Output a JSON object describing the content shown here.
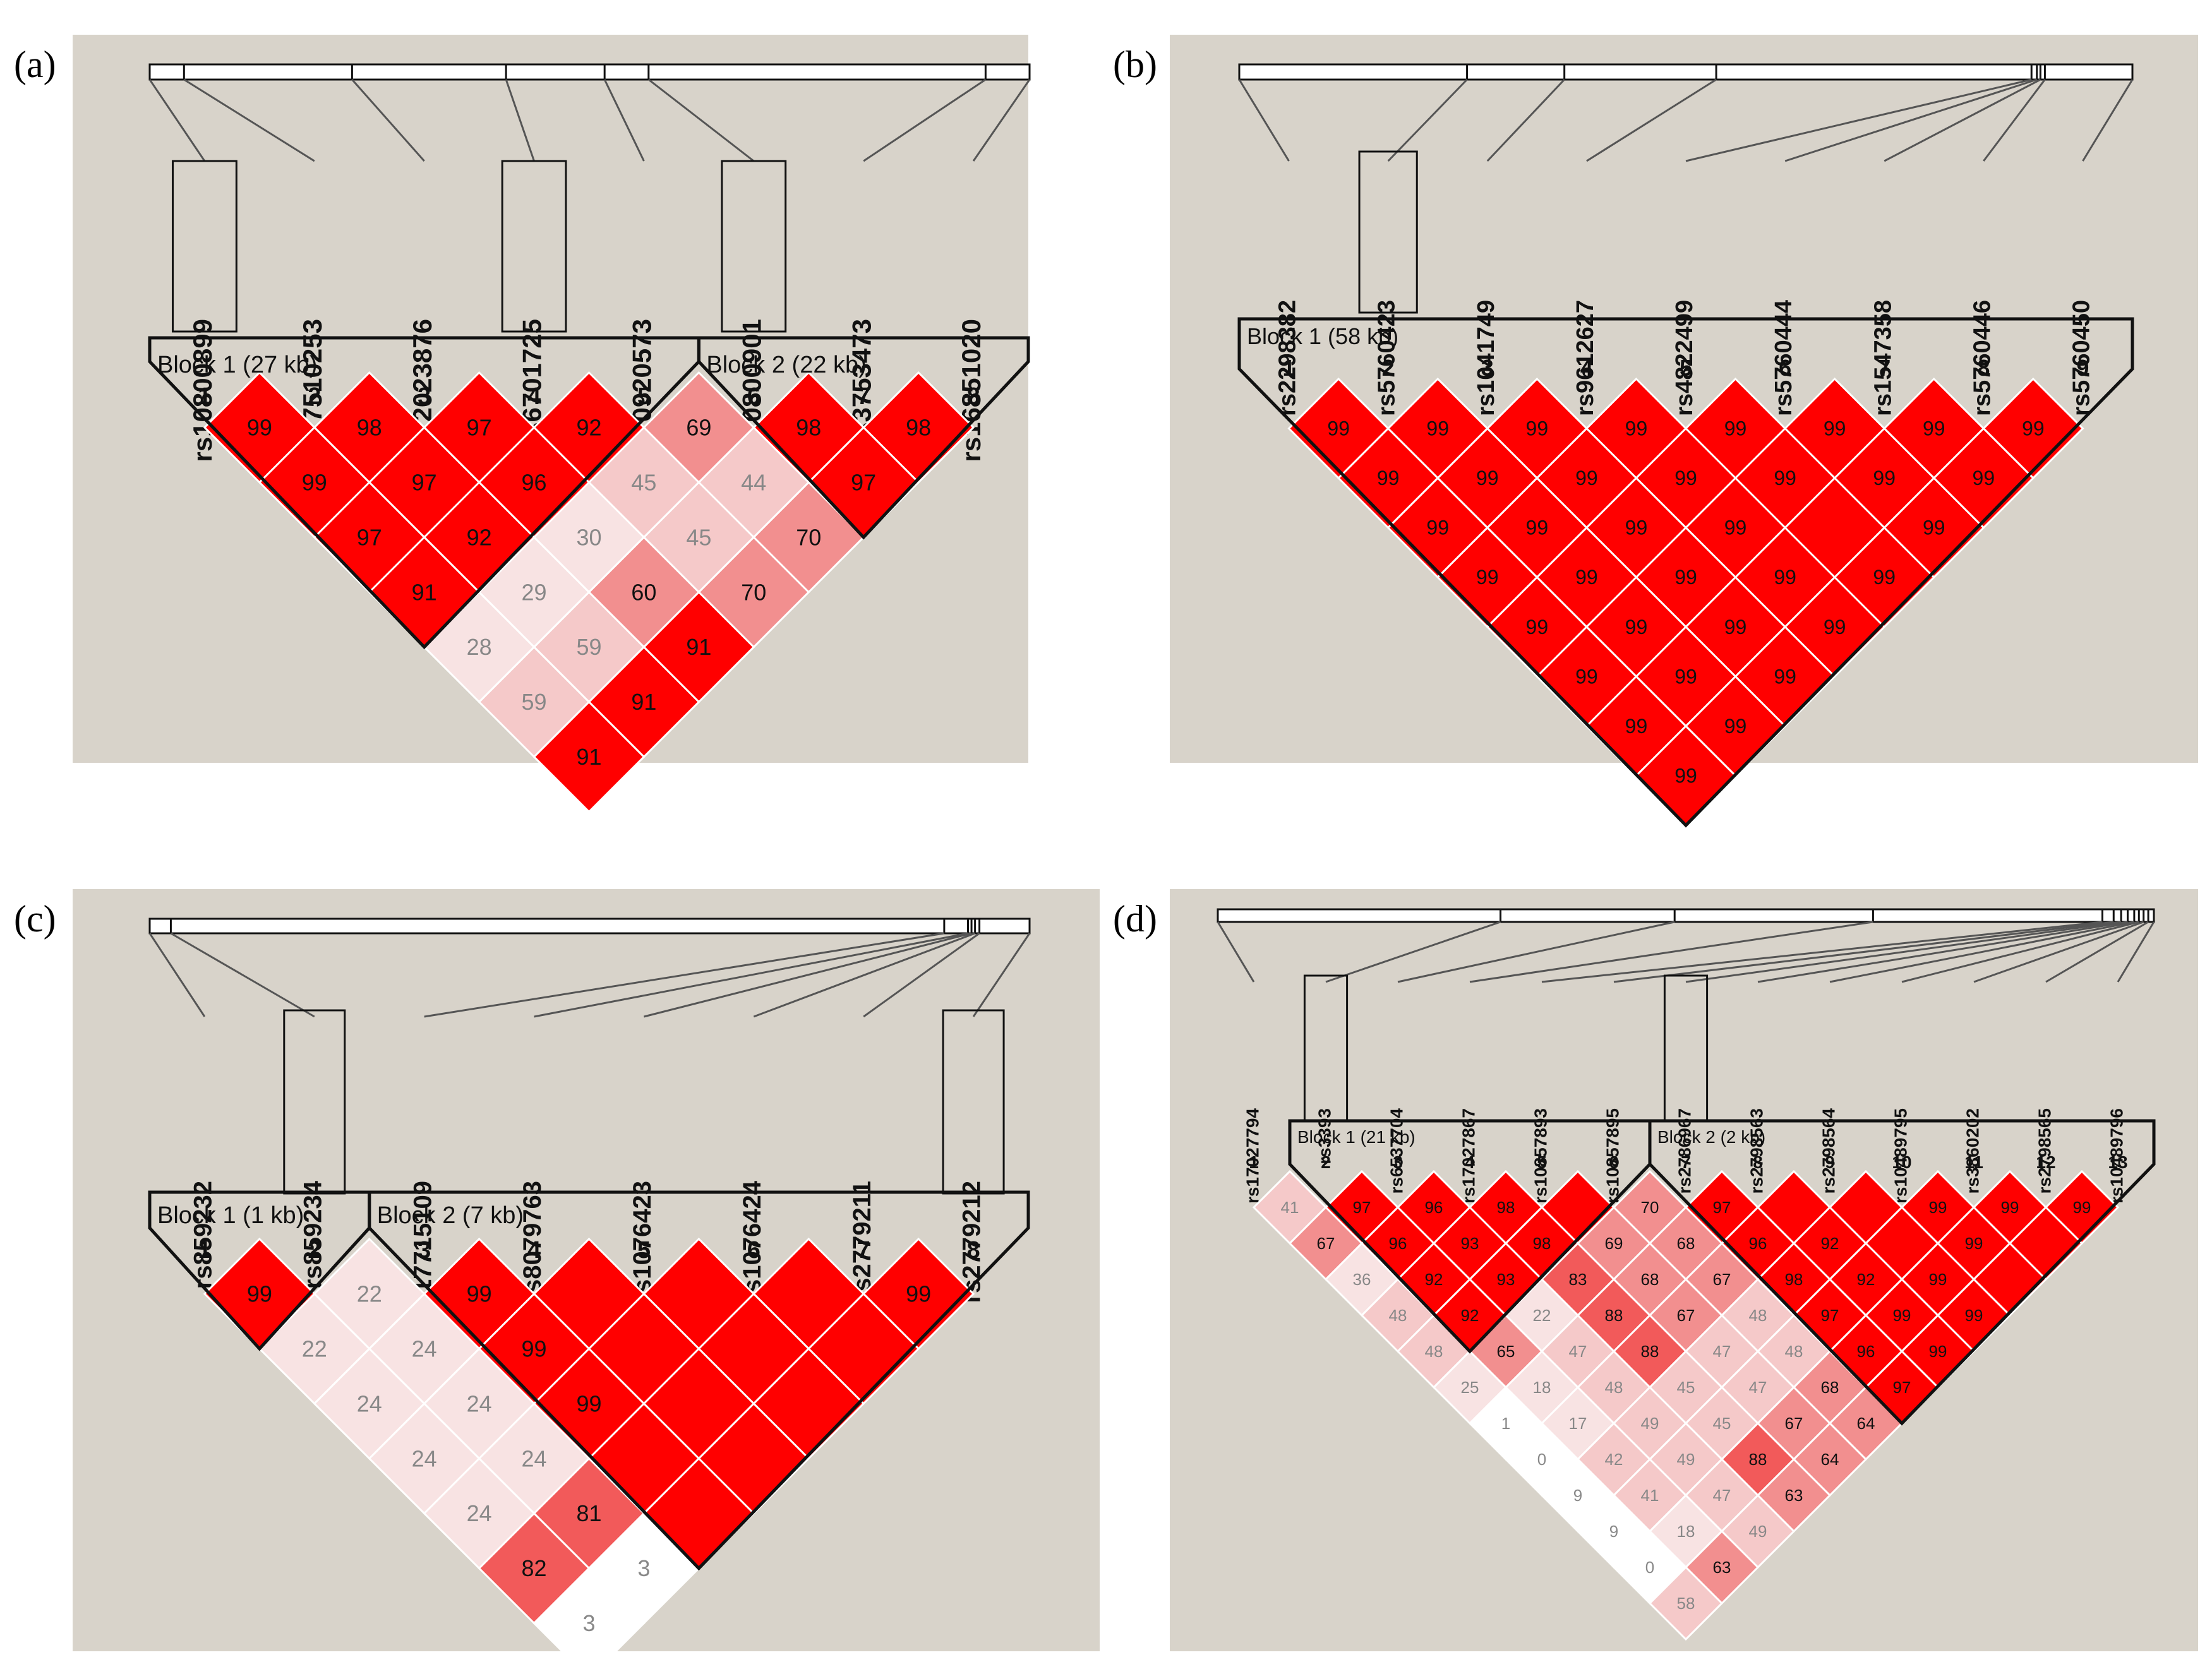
{
  "figure": "Linkage disequilibrium plots",
  "colors": {
    "panel_bg": "#d8d3ca",
    "strong_ld": "#ff0000",
    "mid_high": "#f25a5a",
    "mid": "#f28f8f",
    "low": "#f5c9c9",
    "very_low": "#f8e3e3",
    "none": "#ffffff",
    "outline": "#111111"
  },
  "panels": [
    {
      "letter": "(a)",
      "snps": [
        "rs10800899",
        "rs17510253",
        "rs12023876",
        "rs6701725",
        "rs10920573",
        "rs10800901",
        "rs3753473",
        "rs16851020"
      ],
      "boxed": [
        0,
        3,
        5
      ],
      "positions": [
        0,
        0.039,
        0.23,
        0.405,
        0.517,
        0.567,
        0.95,
        1
      ],
      "blocks": [
        {
          "label": "Block 1 (27 kb)",
          "start": 1,
          "end": 5
        },
        {
          "label": "Block 2 (22 kb)",
          "start": 6,
          "end": 8
        }
      ],
      "ld": [
        {
          "i": 1,
          "j": 2,
          "v": 99
        },
        {
          "i": 2,
          "j": 3,
          "v": 98
        },
        {
          "i": 3,
          "j": 4,
          "v": 97
        },
        {
          "i": 4,
          "j": 5,
          "v": 92
        },
        {
          "i": 5,
          "j": 6,
          "v": 69
        },
        {
          "i": 6,
          "j": 7,
          "v": 98
        },
        {
          "i": 7,
          "j": 8,
          "v": 98
        },
        {
          "i": 1,
          "j": 3,
          "v": 99
        },
        {
          "i": 2,
          "j": 4,
          "v": 97
        },
        {
          "i": 3,
          "j": 5,
          "v": 96
        },
        {
          "i": 4,
          "j": 6,
          "v": 45
        },
        {
          "i": 5,
          "j": 7,
          "v": 44
        },
        {
          "i": 6,
          "j": 8,
          "v": 97
        },
        {
          "i": 1,
          "j": 4,
          "v": 97
        },
        {
          "i": 2,
          "j": 5,
          "v": 92
        },
        {
          "i": 3,
          "j": 6,
          "v": 30
        },
        {
          "i": 4,
          "j": 7,
          "v": 45
        },
        {
          "i": 5,
          "j": 8,
          "v": 70
        },
        {
          "i": 1,
          "j": 5,
          "v": 91
        },
        {
          "i": 2,
          "j": 6,
          "v": 29
        },
        {
          "i": 3,
          "j": 7,
          "v": 60
        },
        {
          "i": 4,
          "j": 8,
          "v": 70
        },
        {
          "i": 1,
          "j": 6,
          "v": 28
        },
        {
          "i": 2,
          "j": 7,
          "v": 59
        },
        {
          "i": 3,
          "j": 8,
          "v": 91
        },
        {
          "i": 1,
          "j": 7,
          "v": 59
        },
        {
          "i": 2,
          "j": 8,
          "v": 91
        },
        {
          "i": 1,
          "j": 8,
          "v": 91
        }
      ]
    },
    {
      "letter": "(b)",
      "snps": [
        "rs2298382",
        "rs5760423",
        "rs1041749",
        "rs9612627",
        "rs4822499",
        "rs5760444",
        "rs1547358",
        "rs5760446",
        "rs5760450"
      ],
      "boxed": [
        1
      ],
      "positions": [
        0,
        0.255,
        0.364,
        0.534,
        0.887,
        0.893,
        0.897,
        0.902,
        1
      ],
      "blocks": [
        {
          "label": "Block 1 (58 kb)",
          "start": 1,
          "end": 9
        }
      ],
      "ld": [
        {
          "i": 1,
          "j": 2,
          "v": 99
        },
        {
          "i": 2,
          "j": 3,
          "v": 99
        },
        {
          "i": 3,
          "j": 4,
          "v": 99
        },
        {
          "i": 4,
          "j": 5,
          "v": 99
        },
        {
          "i": 5,
          "j": 6,
          "v": 99
        },
        {
          "i": 6,
          "j": 7,
          "v": 99
        },
        {
          "i": 7,
          "j": 8,
          "v": 99
        },
        {
          "i": 8,
          "j": 9,
          "v": 99
        },
        {
          "i": 1,
          "j": 3,
          "v": 99
        },
        {
          "i": 2,
          "j": 4,
          "v": 99
        },
        {
          "i": 3,
          "j": 5,
          "v": 99
        },
        {
          "i": 4,
          "j": 6,
          "v": 99
        },
        {
          "i": 5,
          "j": 7,
          "v": 99
        },
        {
          "i": 6,
          "j": 8,
          "v": 99
        },
        {
          "i": 7,
          "j": 9,
          "v": 99
        },
        {
          "i": 1,
          "j": 4,
          "v": 99
        },
        {
          "i": 2,
          "j": 5,
          "v": 99
        },
        {
          "i": 3,
          "j": 6,
          "v": 99
        },
        {
          "i": 4,
          "j": 7,
          "v": 99
        },
        {
          "i": 5,
          "j": 8,
          "v": null
        },
        {
          "i": 6,
          "j": 9,
          "v": 99
        },
        {
          "i": 1,
          "j": 5,
          "v": 99
        },
        {
          "i": 2,
          "j": 6,
          "v": 99
        },
        {
          "i": 3,
          "j": 7,
          "v": 99
        },
        {
          "i": 4,
          "j": 8,
          "v": 99
        },
        {
          "i": 5,
          "j": 9,
          "v": 99
        },
        {
          "i": 1,
          "j": 6,
          "v": 99
        },
        {
          "i": 2,
          "j": 7,
          "v": 99
        },
        {
          "i": 3,
          "j": 8,
          "v": 99
        },
        {
          "i": 4,
          "j": 9,
          "v": 99
        },
        {
          "i": 1,
          "j": 7,
          "v": 99
        },
        {
          "i": 2,
          "j": 8,
          "v": 99
        },
        {
          "i": 3,
          "j": 9,
          "v": 99
        },
        {
          "i": 1,
          "j": 8,
          "v": 99
        },
        {
          "i": 2,
          "j": 9,
          "v": 99
        },
        {
          "i": 1,
          "j": 9,
          "v": 99
        }
      ]
    },
    {
      "letter": "(c)",
      "snps": [
        "rs859232",
        "rs859234",
        "rs17715109",
        "rs8079763",
        "rs1076423",
        "rs1076424",
        "rs2779211",
        "rs2779212"
      ],
      "boxed": [
        1,
        7
      ],
      "positions": [
        0,
        0.024,
        0.903,
        0.93,
        0.934,
        0.938,
        0.943,
        1
      ],
      "blocks": [
        {
          "label": "Block 1 (1 kb)",
          "start": 1,
          "end": 2
        },
        {
          "label": "Block 2 (7 kb)",
          "start": 3,
          "end": 8
        }
      ],
      "ld": [
        {
          "i": 1,
          "j": 2,
          "v": 99
        },
        {
          "i": 2,
          "j": 3,
          "v": 22
        },
        {
          "i": 3,
          "j": 4,
          "v": 99
        },
        {
          "i": 4,
          "j": 5,
          "v": null
        },
        {
          "i": 5,
          "j": 6,
          "v": null
        },
        {
          "i": 6,
          "j": 7,
          "v": null
        },
        {
          "i": 7,
          "j": 8,
          "v": 99
        },
        {
          "i": 1,
          "j": 3,
          "v": 22
        },
        {
          "i": 2,
          "j": 4,
          "v": 24
        },
        {
          "i": 3,
          "j": 5,
          "v": 99
        },
        {
          "i": 4,
          "j": 6,
          "v": null
        },
        {
          "i": 5,
          "j": 7,
          "v": null
        },
        {
          "i": 6,
          "j": 8,
          "v": null
        },
        {
          "i": 1,
          "j": 4,
          "v": 24
        },
        {
          "i": 2,
          "j": 5,
          "v": 24
        },
        {
          "i": 3,
          "j": 6,
          "v": 99
        },
        {
          "i": 4,
          "j": 7,
          "v": null
        },
        {
          "i": 5,
          "j": 8,
          "v": null
        },
        {
          "i": 1,
          "j": 5,
          "v": 24
        },
        {
          "i": 2,
          "j": 6,
          "v": 24
        },
        {
          "i": 3,
          "j": 7,
          "v": null
        },
        {
          "i": 4,
          "j": 8,
          "v": null
        },
        {
          "i": 1,
          "j": 6,
          "v": 24
        },
        {
          "i": 2,
          "j": 7,
          "v": 81
        },
        {
          "i": 3,
          "j": 8,
          "v": null
        },
        {
          "i": 1,
          "j": 7,
          "v": 82
        },
        {
          "i": 2,
          "j": 8,
          "v": 3
        },
        {
          "i": 1,
          "j": 8,
          "v": 3
        }
      ]
    },
    {
      "letter": "(d)",
      "snps": [
        "rs17027794",
        "rs3393",
        "rs6537704",
        "rs17027867",
        "rs10857893",
        "rs10857895",
        "rs2786967",
        "rs2798563",
        "rs2798564",
        "rs10489795",
        "rs3860202",
        "rs2798565",
        "rs10489796"
      ],
      "boxed": [
        1,
        6
      ],
      "positions": [
        0,
        0.302,
        0.488,
        0.7,
        0.945,
        0.957,
        0.965,
        0.972,
        0.979,
        0.984,
        0.989,
        0.994,
        1
      ],
      "blocks": [
        {
          "label": "Block 1 (21 kb)",
          "start": 2,
          "end": 6
        },
        {
          "label": "Block 2 (2 kb)",
          "start": 7,
          "end": 13
        }
      ],
      "ld": [
        {
          "i": 1,
          "j": 2,
          "v": 41
        },
        {
          "i": 2,
          "j": 3,
          "v": 97
        },
        {
          "i": 3,
          "j": 4,
          "v": 96
        },
        {
          "i": 4,
          "j": 5,
          "v": 98
        },
        {
          "i": 5,
          "j": 6,
          "v": null
        },
        {
          "i": 6,
          "j": 7,
          "v": 70
        },
        {
          "i": 7,
          "j": 8,
          "v": 97
        },
        {
          "i": 8,
          "j": 9,
          "v": null
        },
        {
          "i": 9,
          "j": 10,
          "v": null
        },
        {
          "i": 10,
          "j": 11,
          "v": 99
        },
        {
          "i": 11,
          "j": 12,
          "v": 99
        },
        {
          "i": 12,
          "j": 13,
          "v": 99
        },
        {
          "i": 1,
          "j": 3,
          "v": 67
        },
        {
          "i": 2,
          "j": 4,
          "v": 96
        },
        {
          "i": 3,
          "j": 5,
          "v": 93
        },
        {
          "i": 4,
          "j": 6,
          "v": 98
        },
        {
          "i": 5,
          "j": 7,
          "v": 69
        },
        {
          "i": 6,
          "j": 8,
          "v": 68
        },
        {
          "i": 7,
          "j": 9,
          "v": 96
        },
        {
          "i": 8,
          "j": 10,
          "v": 92
        },
        {
          "i": 9,
          "j": 11,
          "v": null
        },
        {
          "i": 10,
          "j": 12,
          "v": 99
        },
        {
          "i": 11,
          "j": 13,
          "v": null
        },
        {
          "i": 1,
          "j": 4,
          "v": 36
        },
        {
          "i": 2,
          "j": 5,
          "v": 92
        },
        {
          "i": 3,
          "j": 6,
          "v": 93
        },
        {
          "i": 4,
          "j": 7,
          "v": 83
        },
        {
          "i": 5,
          "j": 8,
          "v": 68
        },
        {
          "i": 6,
          "j": 9,
          "v": 67
        },
        {
          "i": 7,
          "j": 10,
          "v": 98
        },
        {
          "i": 8,
          "j": 11,
          "v": 92
        },
        {
          "i": 9,
          "j": 12,
          "v": 99
        },
        {
          "i": 10,
          "j": 13,
          "v": null
        },
        {
          "i": 1,
          "j": 5,
          "v": 48
        },
        {
          "i": 2,
          "j": 6,
          "v": 92
        },
        {
          "i": 3,
          "j": 7,
          "v": 22
        },
        {
          "i": 4,
          "j": 8,
          "v": 88
        },
        {
          "i": 5,
          "j": 9,
          "v": 67
        },
        {
          "i": 6,
          "j": 10,
          "v": 48
        },
        {
          "i": 7,
          "j": 11,
          "v": 97
        },
        {
          "i": 8,
          "j": 12,
          "v": 99
        },
        {
          "i": 9,
          "j": 13,
          "v": 99
        },
        {
          "i": 1,
          "j": 6,
          "v": 48
        },
        {
          "i": 2,
          "j": 7,
          "v": 65
        },
        {
          "i": 3,
          "j": 8,
          "v": 47
        },
        {
          "i": 4,
          "j": 9,
          "v": 88
        },
        {
          "i": 5,
          "j": 10,
          "v": 47
        },
        {
          "i": 6,
          "j": 11,
          "v": 48
        },
        {
          "i": 7,
          "j": 12,
          "v": 96
        },
        {
          "i": 8,
          "j": 13,
          "v": 99
        },
        {
          "i": 1,
          "j": 7,
          "v": 25
        },
        {
          "i": 2,
          "j": 8,
          "v": 18
        },
        {
          "i": 3,
          "j": 9,
          "v": 48
        },
        {
          "i": 4,
          "j": 10,
          "v": 45
        },
        {
          "i": 5,
          "j": 11,
          "v": 47
        },
        {
          "i": 6,
          "j": 12,
          "v": 68
        },
        {
          "i": 7,
          "j": 13,
          "v": 97
        },
        {
          "i": 1,
          "j": 8,
          "v": 1
        },
        {
          "i": 2,
          "j": 9,
          "v": 17
        },
        {
          "i": 3,
          "j": 10,
          "v": 49
        },
        {
          "i": 4,
          "j": 11,
          "v": 45
        },
        {
          "i": 5,
          "j": 12,
          "v": 67
        },
        {
          "i": 6,
          "j": 13,
          "v": 64
        },
        {
          "i": 1,
          "j": 9,
          "v": 0
        },
        {
          "i": 2,
          "j": 10,
          "v": 42
        },
        {
          "i": 3,
          "j": 11,
          "v": 49
        },
        {
          "i": 4,
          "j": 12,
          "v": 88
        },
        {
          "i": 5,
          "j": 13,
          "v": 64
        },
        {
          "i": 1,
          "j": 10,
          "v": 9
        },
        {
          "i": 2,
          "j": 11,
          "v": 41
        },
        {
          "i": 3,
          "j": 12,
          "v": 47
        },
        {
          "i": 4,
          "j": 13,
          "v": 63
        },
        {
          "i": 1,
          "j": 11,
          "v": 9
        },
        {
          "i": 2,
          "j": 12,
          "v": 18
        },
        {
          "i": 3,
          "j": 13,
          "v": 49
        },
        {
          "i": 1,
          "j": 12,
          "v": 0
        },
        {
          "i": 2,
          "j": 13,
          "v": 63
        },
        {
          "i": 1,
          "j": 13,
          "v": 58
        }
      ]
    }
  ]
}
